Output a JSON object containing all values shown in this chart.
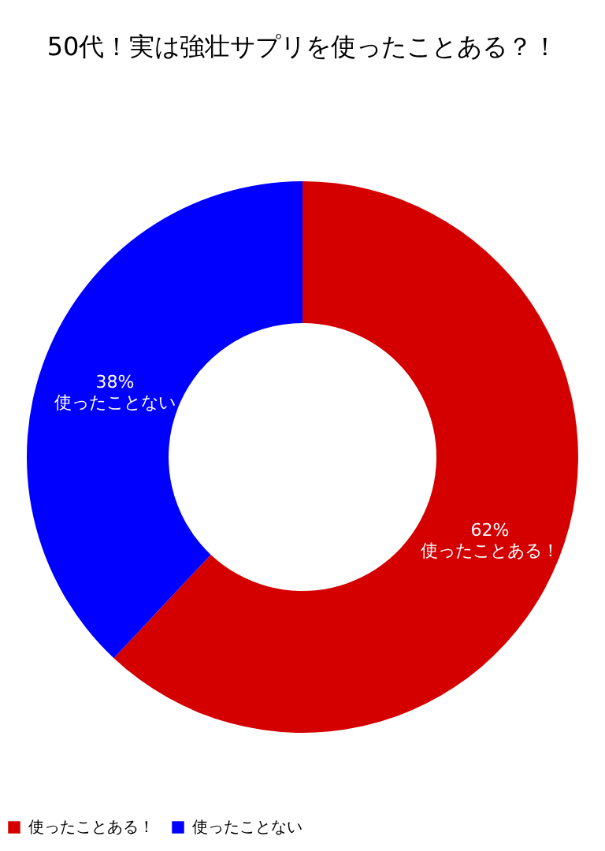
{
  "chart_data": {
    "type": "donut",
    "title": "50代！実は強壮サプリを使ったことある？！",
    "categories": [
      "使ったことある！",
      "使ったことない"
    ],
    "values": [
      62,
      38
    ],
    "colors": [
      "#d40000",
      "#0000ff"
    ],
    "value_labels": [
      "62%",
      "38%"
    ],
    "legend": "bottom left"
  }
}
